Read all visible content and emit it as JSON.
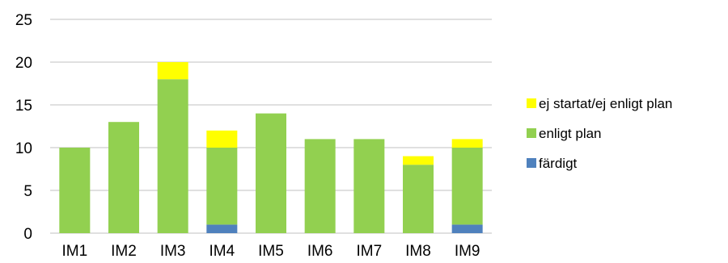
{
  "chart_data": {
    "type": "bar",
    "stacked": true,
    "categories": [
      "IM1",
      "IM2",
      "IM3",
      "IM4",
      "IM5",
      "IM6",
      "IM7",
      "IM8",
      "IM9"
    ],
    "series": [
      {
        "name": "färdigt",
        "color": "#4f81bd",
        "values": [
          0,
          0,
          0,
          1,
          0,
          0,
          0,
          0,
          1
        ]
      },
      {
        "name": "enligt plan",
        "color": "#92d050",
        "values": [
          10,
          13,
          18,
          9,
          14,
          11,
          11,
          8,
          9
        ]
      },
      {
        "name": "ej startat/ej enligt plan",
        "color": "#ffff00",
        "values": [
          0,
          0,
          2,
          2,
          0,
          0,
          0,
          1,
          1
        ]
      }
    ],
    "ylim": [
      0,
      25
    ],
    "yticks": [
      0,
      5,
      10,
      15,
      20,
      25
    ],
    "grid": true,
    "gridline_color": "#c0c0c0",
    "legend_position": "right",
    "legend_order": [
      "ej startat/ej enligt plan",
      "enligt plan",
      "färdigt"
    ]
  }
}
